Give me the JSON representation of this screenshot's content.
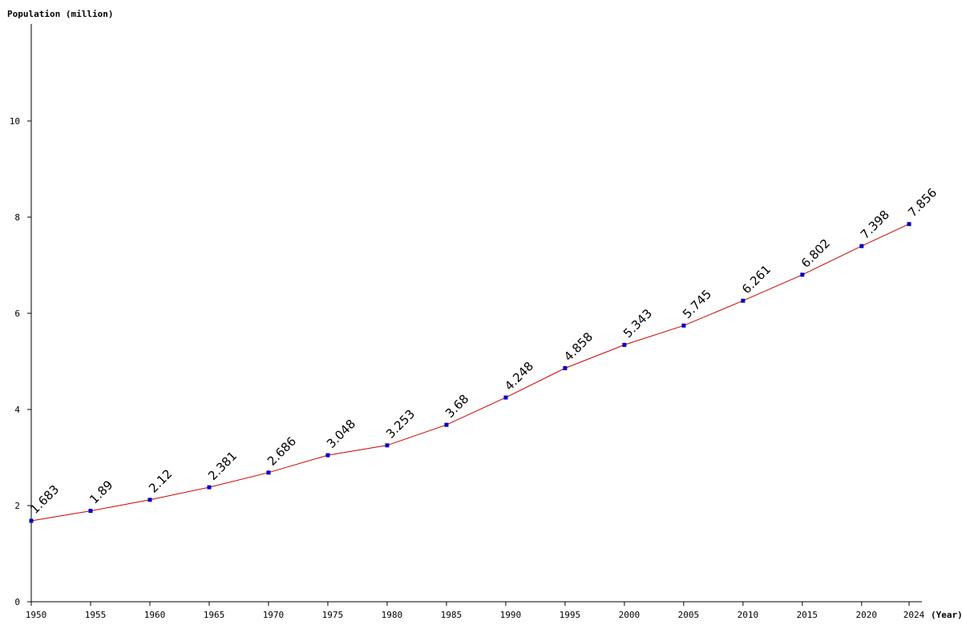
{
  "chart_data": {
    "type": "line",
    "ylabel": "Population (million)",
    "xlabel": "(Year)",
    "ylim": [
      0,
      12
    ],
    "y_ticks": [
      "0",
      "2",
      "4",
      "6",
      "8",
      "10"
    ],
    "x_ticks": [
      "1950",
      "1955",
      "1960",
      "1965",
      "1970",
      "1975",
      "1980",
      "1985",
      "1990",
      "1995",
      "2000",
      "2005",
      "2010",
      "2015",
      "2020",
      "2024"
    ],
    "line_color": "#cc0000",
    "marker_color": "#0000cc",
    "points": [
      {
        "x": 1950,
        "y": 1.683,
        "label": "1.683"
      },
      {
        "x": 1955,
        "y": 1.89,
        "label": "1.89"
      },
      {
        "x": 1960,
        "y": 2.12,
        "label": "2.12"
      },
      {
        "x": 1965,
        "y": 2.381,
        "label": "2.381"
      },
      {
        "x": 1970,
        "y": 2.686,
        "label": "2.686"
      },
      {
        "x": 1975,
        "y": 3.048,
        "label": "3.048"
      },
      {
        "x": 1980,
        "y": 3.253,
        "label": "3.253"
      },
      {
        "x": 1985,
        "y": 3.68,
        "label": "3.68"
      },
      {
        "x": 1990,
        "y": 4.248,
        "label": "4.248"
      },
      {
        "x": 1995,
        "y": 4.858,
        "label": "4.858"
      },
      {
        "x": 2000,
        "y": 5.343,
        "label": "5.343"
      },
      {
        "x": 2005,
        "y": 5.745,
        "label": "5.745"
      },
      {
        "x": 2010,
        "y": 6.261,
        "label": "6.261"
      },
      {
        "x": 2015,
        "y": 6.802,
        "label": "6.802"
      },
      {
        "x": 2020,
        "y": 7.398,
        "label": "7.398"
      },
      {
        "x": 2024,
        "y": 7.856,
        "label": "7.856"
      }
    ]
  }
}
